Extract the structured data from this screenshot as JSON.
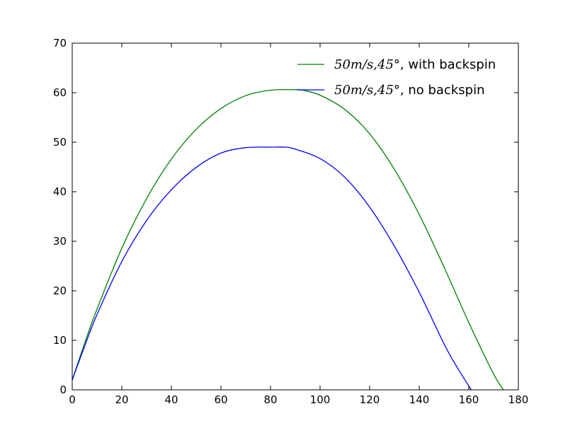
{
  "chart_data": {
    "type": "line",
    "title": "",
    "xlabel": "",
    "ylabel": "",
    "xlim": [
      0,
      180
    ],
    "ylim": [
      0,
      70
    ],
    "xticks": [
      0,
      20,
      40,
      60,
      80,
      100,
      120,
      140,
      160,
      180
    ],
    "yticks": [
      0,
      10,
      20,
      30,
      40,
      50,
      60,
      70
    ],
    "grid": false,
    "legend_position": "top-right",
    "series": [
      {
        "name": "50m/s,45°, with backspin",
        "legend_math": "50m/s,45°",
        "legend_suffix": ", with backspin",
        "color": "#008000",
        "x": [
          0,
          5,
          10,
          20,
          30,
          40,
          50,
          60,
          70,
          80,
          90,
          93,
          100,
          110,
          120,
          130,
          140,
          150,
          160,
          170,
          174
        ],
        "y": [
          2,
          9.4,
          16.3,
          28.6,
          38.6,
          46.6,
          52.6,
          56.8,
          59.4,
          60.5,
          60.6,
          60.5,
          59.5,
          56.6,
          51.7,
          44.5,
          35.4,
          24.8,
          13.6,
          3.2,
          0
        ]
      },
      {
        "name": "50m/s,45°, no backspin",
        "legend_math": "50m/s,45°",
        "legend_suffix": ", no backspin",
        "color": "#0000ff",
        "x": [
          0,
          5,
          10,
          20,
          30,
          40,
          50,
          60,
          70,
          80,
          86,
          90,
          100,
          110,
          120,
          130,
          140,
          150,
          155,
          161
        ],
        "y": [
          2,
          8.8,
          15.2,
          25.9,
          34.2,
          40.4,
          44.9,
          47.8,
          48.9,
          49.0,
          49.0,
          48.6,
          46.7,
          42.9,
          36.9,
          29.0,
          19.7,
          9.3,
          4.8,
          0
        ]
      }
    ]
  }
}
